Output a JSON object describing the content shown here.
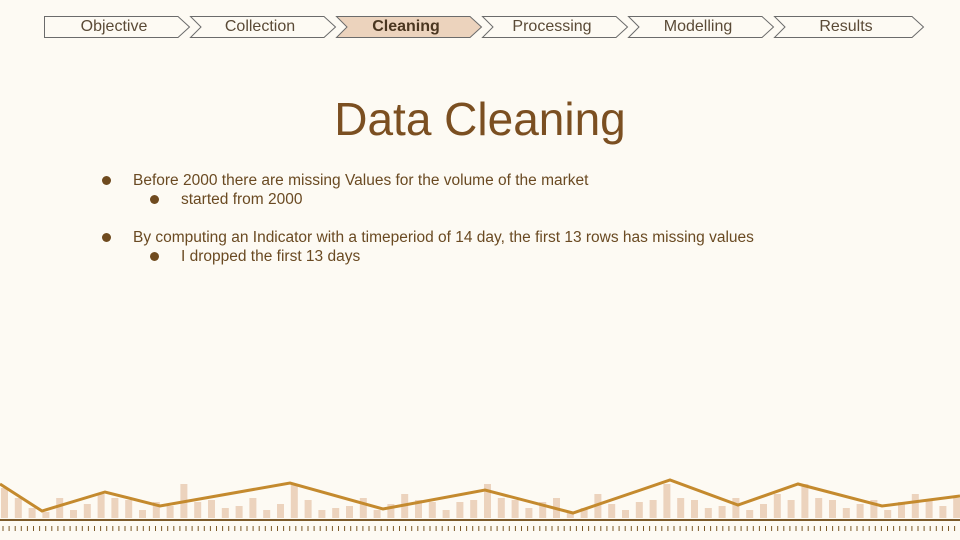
{
  "nav": {
    "steps": [
      {
        "label": "Objective",
        "active": false
      },
      {
        "label": "Collection",
        "active": false
      },
      {
        "label": "Cleaning",
        "active": true
      },
      {
        "label": "Processing",
        "active": false
      },
      {
        "label": "Modelling",
        "active": false
      },
      {
        "label": "Results",
        "active": false
      }
    ]
  },
  "slide": {
    "title": "Data Cleaning",
    "bullets": [
      {
        "text": "Before 2000 there are missing Values for the volume of the market",
        "sub": "started from 2000"
      },
      {
        "text": "By computing an Indicator with a timeperiod of 14 day, the first 13 rows has missing values",
        "sub": "I dropped the first 13 days"
      }
    ]
  },
  "colors": {
    "accent": "#c48a2e",
    "bar": "#ecd3bd",
    "active_step": "#ecd3bd",
    "title": "#7b4f21"
  }
}
